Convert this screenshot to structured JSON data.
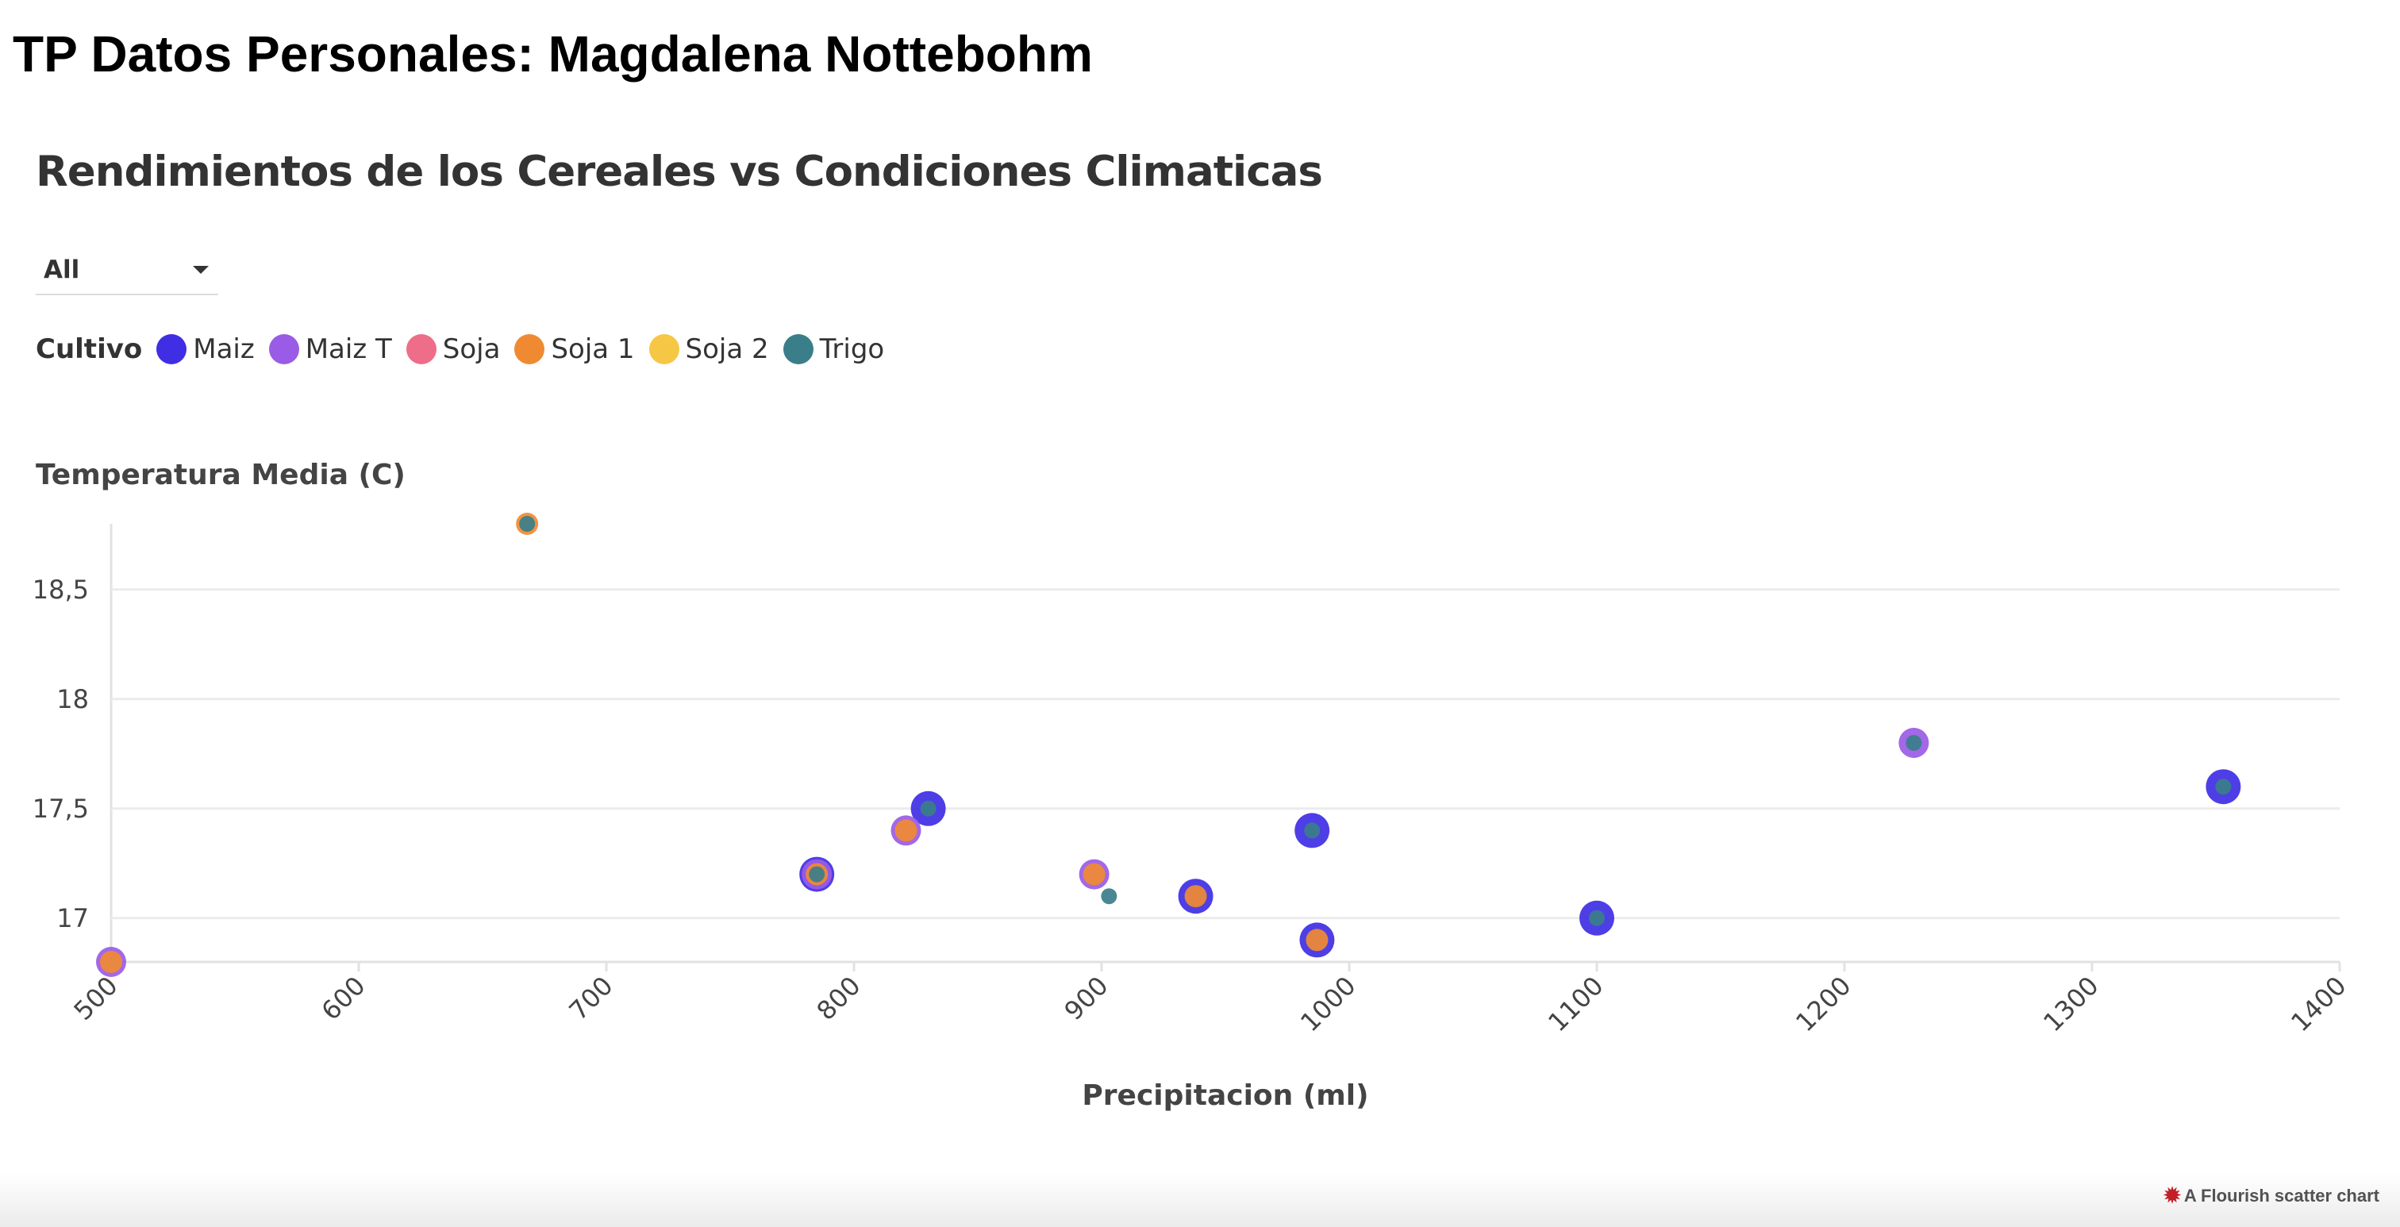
{
  "page": {
    "heading": "TP Datos Personales: Magdalena Nottebohm"
  },
  "filter": {
    "selected": "All"
  },
  "legend": {
    "title": "Cultivo",
    "items": [
      {
        "label": "Maiz",
        "color": "#3f2ee3"
      },
      {
        "label": "Maiz T",
        "color": "#9a5be6"
      },
      {
        "label": "Soja",
        "color": "#ee6d89"
      },
      {
        "label": "Soja 1",
        "color": "#f08a32"
      },
      {
        "label": "Soja 2",
        "color": "#f6c744"
      },
      {
        "label": "Trigo",
        "color": "#3a7e8a"
      }
    ]
  },
  "watermark": {
    "icon": "flourish-icon",
    "text": "A Flourish scatter chart"
  },
  "chart_data": {
    "type": "scatter",
    "title": "Rendimientos de los Cereales vs Condiciones Climaticas",
    "xlabel": "Precipitacion (ml)",
    "ylabel": "Temperatura Media (C)",
    "xlim": [
      500,
      1400
    ],
    "ylim": [
      16.8,
      18.8
    ],
    "xticks": [
      {
        "value": 500,
        "label": "500"
      },
      {
        "value": 600,
        "label": "600"
      },
      {
        "value": 700,
        "label": "700"
      },
      {
        "value": 800,
        "label": "800"
      },
      {
        "value": 900,
        "label": "900"
      },
      {
        "value": 1000,
        "label": "1000"
      },
      {
        "value": 1100,
        "label": "1100"
      },
      {
        "value": 1200,
        "label": "1200"
      },
      {
        "value": 1300,
        "label": "1300"
      },
      {
        "value": 1400,
        "label": "1400"
      }
    ],
    "yticks": [
      {
        "value": 17,
        "label": "17"
      },
      {
        "value": 17.5,
        "label": "17,5"
      },
      {
        "value": 18,
        "label": "18"
      },
      {
        "value": 18.5,
        "label": "18,5"
      }
    ],
    "grid": true,
    "legend_position": "top-left",
    "series": [
      {
        "name": "Maiz",
        "color": "#3f2ee3",
        "points": [
          {
            "x": 785,
            "y": 17.2
          },
          {
            "x": 938,
            "y": 17.1
          },
          {
            "x": 1100,
            "y": 17.0
          },
          {
            "x": 1353,
            "y": 17.6
          },
          {
            "x": 985,
            "y": 17.4
          },
          {
            "x": 987,
            "y": 16.9
          },
          {
            "x": 830,
            "y": 17.5
          }
        ]
      },
      {
        "name": "Maiz T",
        "color": "#9a5be6",
        "points": [
          {
            "x": 500,
            "y": 16.8
          },
          {
            "x": 821,
            "y": 17.4
          },
          {
            "x": 897,
            "y": 17.2
          },
          {
            "x": 1228,
            "y": 17.8
          },
          {
            "x": 785,
            "y": 17.2
          }
        ]
      },
      {
        "name": "Soja 1",
        "color": "#f08a32",
        "points": [
          {
            "x": 668,
            "y": 18.8
          },
          {
            "x": 500,
            "y": 16.8
          },
          {
            "x": 785,
            "y": 17.2
          },
          {
            "x": 821,
            "y": 17.4
          },
          {
            "x": 897,
            "y": 17.2
          },
          {
            "x": 938,
            "y": 17.1
          },
          {
            "x": 987,
            "y": 16.9
          }
        ]
      },
      {
        "name": "Trigo",
        "color": "#3a7e8a",
        "points": [
          {
            "x": 668,
            "y": 18.8
          },
          {
            "x": 785,
            "y": 17.2
          },
          {
            "x": 830,
            "y": 17.5
          },
          {
            "x": 903,
            "y": 17.1
          },
          {
            "x": 985,
            "y": 17.4
          },
          {
            "x": 1100,
            "y": 17.0
          },
          {
            "x": 1228,
            "y": 17.8
          },
          {
            "x": 1353,
            "y": 17.6
          }
        ]
      }
    ]
  }
}
